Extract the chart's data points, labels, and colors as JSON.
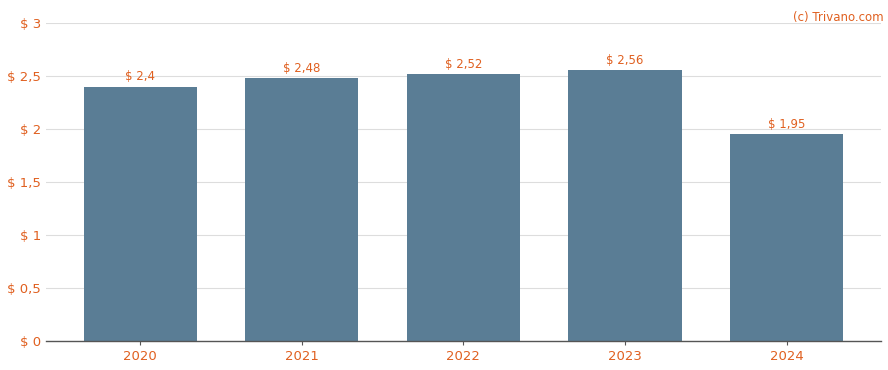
{
  "categories": [
    "2020",
    "2021",
    "2022",
    "2023",
    "2024"
  ],
  "values": [
    2.4,
    2.48,
    2.52,
    2.56,
    1.95
  ],
  "labels": [
    "$ 2,4",
    "$ 2,48",
    "$ 2,52",
    "$ 2,56",
    "$ 1,95"
  ],
  "bar_color": "#5a7d95",
  "background_color": "#ffffff",
  "ylim": [
    0,
    3.0
  ],
  "yticks": [
    0,
    0.5,
    1.0,
    1.5,
    2.0,
    2.5,
    3.0
  ],
  "ytick_labels": [
    "$ 0",
    "$ 0,5",
    "$ 1",
    "$ 1,5",
    "$ 2",
    "$ 2,5",
    "$ 3"
  ],
  "watermark": "(c) Trivano.com",
  "watermark_color": "#e06020",
  "label_color": "#e06020",
  "tick_label_color": "#e06020",
  "grid_color": "#dddddd",
  "bar_label_fontsize": 8.5,
  "tick_fontsize": 9.5
}
